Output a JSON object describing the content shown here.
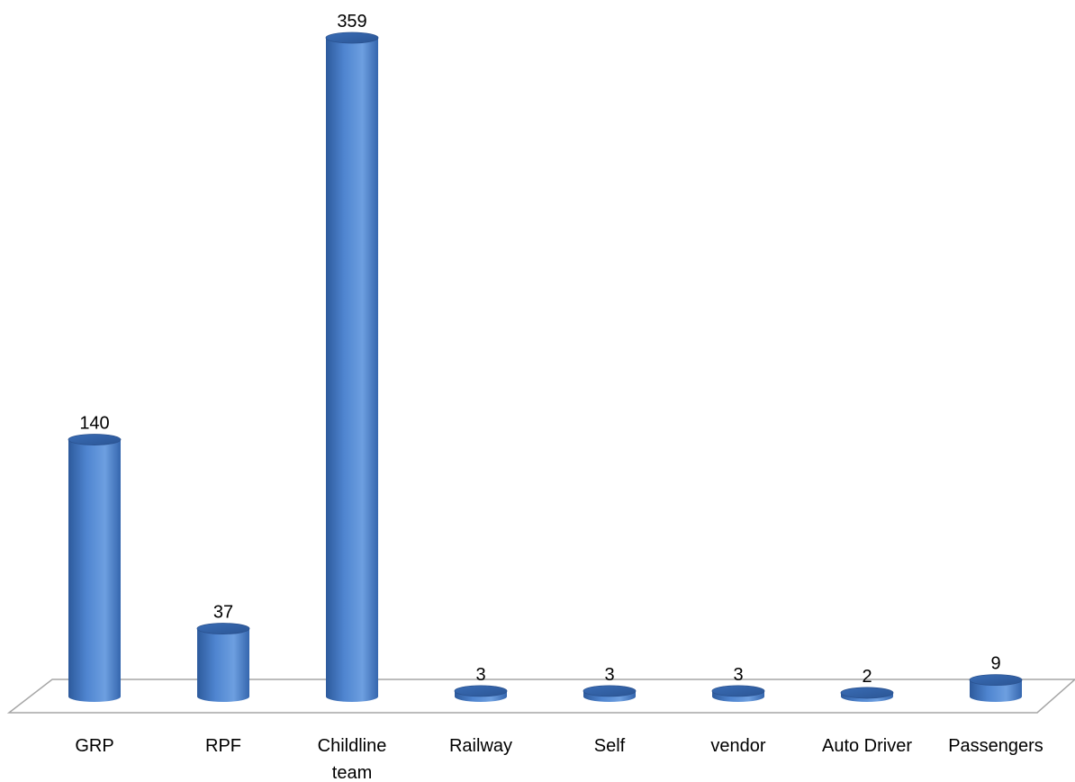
{
  "chart_data": {
    "type": "bar",
    "style": "3d-cylinder",
    "categories": [
      "GRP",
      "RPF",
      "Childline team",
      "Railway",
      "Self",
      "vendor",
      "Auto Driver",
      "Passengers"
    ],
    "values": [
      140,
      37,
      359,
      3,
      3,
      3,
      2,
      9
    ],
    "data_labels": [
      "140",
      "37",
      "359",
      "3",
      "3",
      "3",
      "2",
      "9"
    ],
    "title": "",
    "xlabel": "",
    "ylabel": "",
    "ylim": [
      0,
      359
    ],
    "grid": false,
    "legend": "none",
    "bar_color": "#4a7ec8",
    "floor_color": "#a6a6a6"
  }
}
